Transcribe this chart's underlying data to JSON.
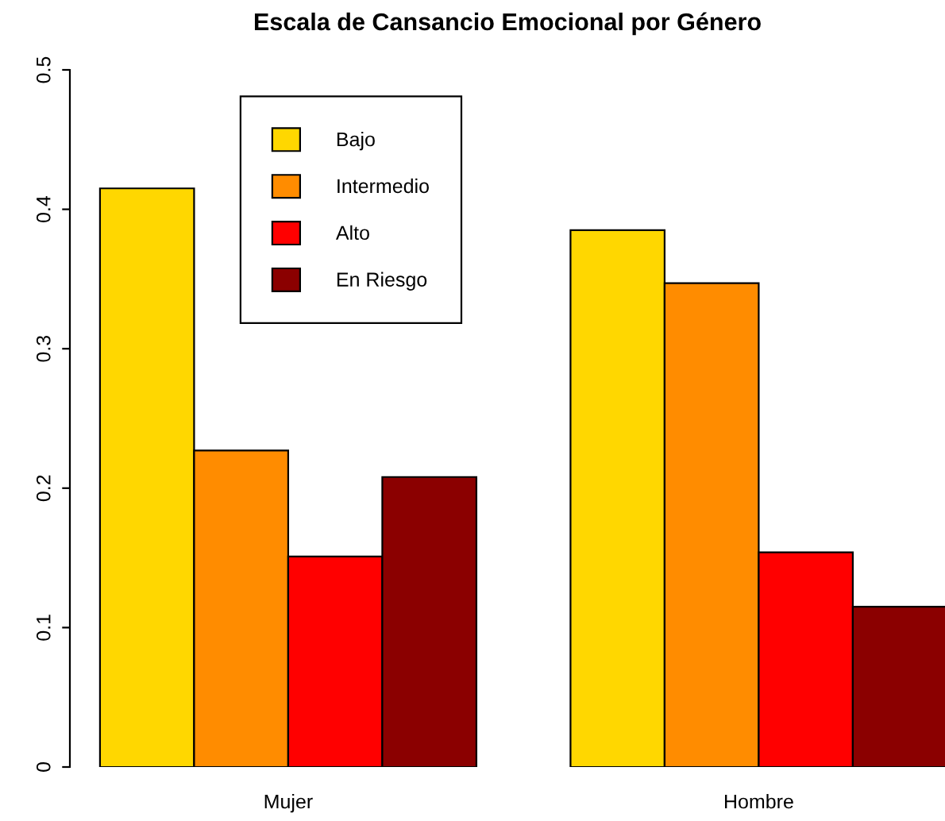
{
  "chart_data": {
    "type": "bar",
    "title": "Escala de Cansancio Emocional por Género",
    "categories": [
      "Mujer",
      "Hombre"
    ],
    "series": [
      {
        "name": "Bajo",
        "color": "#ffd700",
        "values": [
          0.415,
          0.385
        ]
      },
      {
        "name": "Intermedio",
        "color": "#ff8c00",
        "values": [
          0.227,
          0.347
        ]
      },
      {
        "name": "Alto",
        "color": "#ff0000",
        "values": [
          0.151,
          0.154
        ]
      },
      {
        "name": "En Riesgo",
        "color": "#8b0000",
        "values": [
          0.208,
          0.115
        ]
      }
    ],
    "ylim": [
      0,
      0.5
    ],
    "yticks": [
      0,
      0.1,
      0.2,
      0.3,
      0.4,
      0.5
    ],
    "grid": false,
    "legend": "top left"
  }
}
